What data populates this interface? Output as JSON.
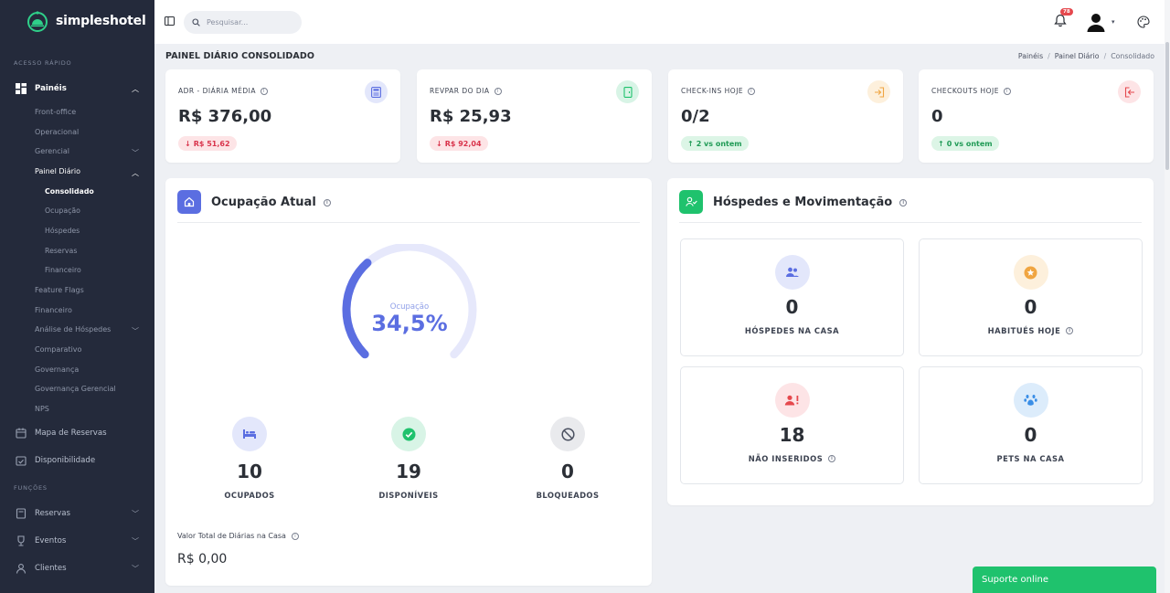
{
  "app": {
    "name": "simpleshotel"
  },
  "sidebar": {
    "section_quick": "ACESSO RÁPIDO",
    "section_functions": "FUNÇÕES",
    "paineis": "Painéis",
    "front_office": "Front-office",
    "operacional": "Operacional",
    "gerencial": "Gerencial",
    "painel_diario": "Painel Diário",
    "consolidado": "Consolidado",
    "ocupacao": "Ocupação",
    "hospedes": "Hóspedes",
    "reservas": "Reservas",
    "financeiro_sub": "Financeiro",
    "feature_flags": "Feature Flags",
    "financeiro": "Financeiro",
    "analise_hospedes": "Análise de Hóspedes",
    "comparativo": "Comparativo",
    "governanca": "Governança",
    "governanca_gerencial": "Governança Gerencial",
    "nps": "NPS",
    "mapa_reservas": "Mapa de Reservas",
    "disponibilidade": "Disponibilidade",
    "fn_reservas": "Reservas",
    "fn_eventos": "Eventos",
    "fn_clientes": "Clientes"
  },
  "topbar": {
    "search_placeholder": "Pesquisar...",
    "notification_count": "78"
  },
  "page": {
    "title": "PAINEL DIÁRIO CONSOLIDADO",
    "breadcrumb": [
      "Painéis",
      "Painel Diário",
      "Consolidado"
    ]
  },
  "kpis": [
    {
      "label": "ADR - DIÁRIA MÉDIA",
      "value": "R$ 376,00",
      "badge": "R$ 51,62",
      "trend": "down"
    },
    {
      "label": "REVPAR DO DIA",
      "value": "R$ 25,93",
      "badge": "R$ 92,04",
      "trend": "down"
    },
    {
      "label": "CHECK-INS HOJE",
      "value": "0/2",
      "badge": "2 vs ontem",
      "trend": "up"
    },
    {
      "label": "CHECKOUTS HOJE",
      "value": "0",
      "badge": "0 vs ontem",
      "trend": "up"
    }
  ],
  "occupancy": {
    "title": "Ocupação Atual",
    "gauge_label": "Ocupação",
    "gauge_value": "34,5%",
    "gauge_fraction": 0.345,
    "stats": [
      {
        "value": "10",
        "label": "OCUPADOS"
      },
      {
        "value": "19",
        "label": "DISPONÍVEIS"
      },
      {
        "value": "0",
        "label": "BLOQUEADOS"
      }
    ],
    "total_label": "Valor Total de Diárias na Casa",
    "total_value": "R$ 0,00"
  },
  "guests": {
    "title": "Hóspedes e Movimentação",
    "cards": [
      {
        "value": "0",
        "label": "HÓSPEDES NA CASA"
      },
      {
        "value": "0",
        "label": "HABITUÉS HOJE"
      },
      {
        "value": "18",
        "label": "NÃO INSERIDOS"
      },
      {
        "value": "0",
        "label": "PETS NA CASA"
      }
    ]
  },
  "support": {
    "label": "Suporte online"
  },
  "colors": {
    "sidebar_bg": "#242a3b",
    "accent_blue": "#5b6ee1",
    "accent_green": "#1fc26d",
    "down_red": "#d9344c",
    "up_green": "#1f9a55"
  }
}
